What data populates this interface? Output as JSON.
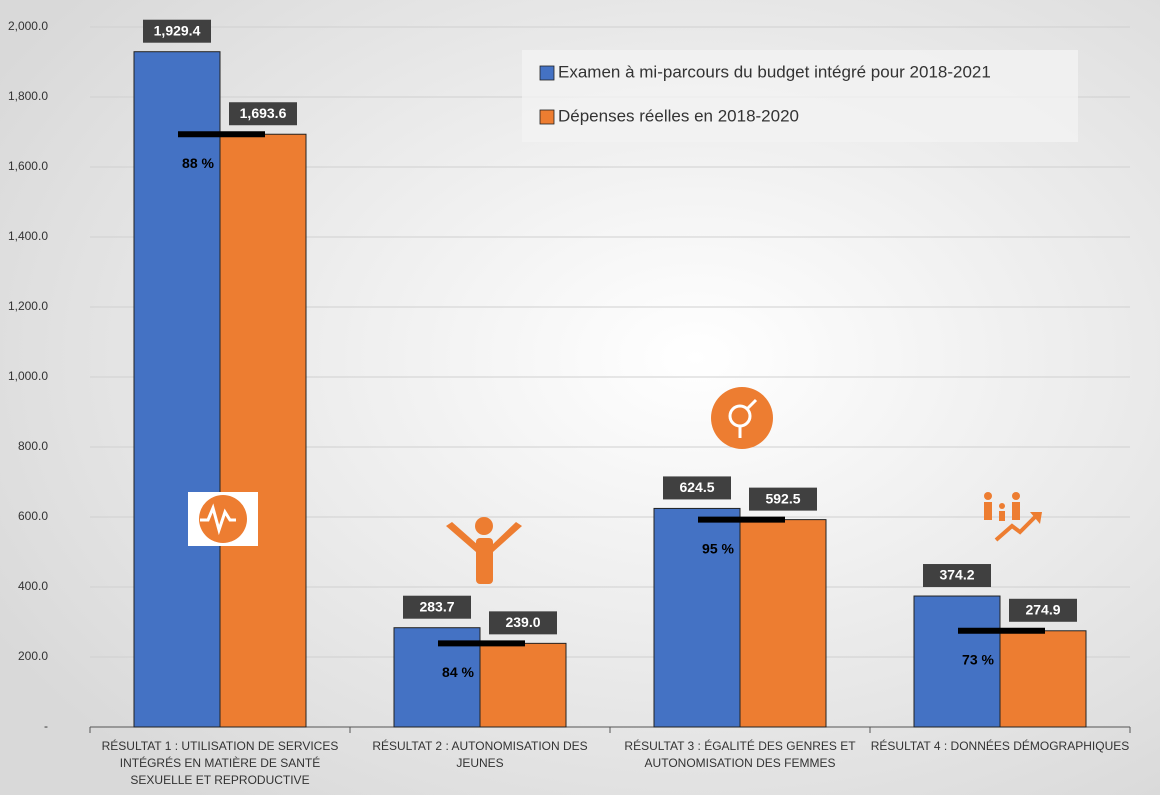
{
  "chart_data": {
    "type": "bar",
    "categories": [
      "RÉSULTAT 1 : UTILISATION DE SERVICES INTÉGRÉS EN MATIÈRE DE SANTÉ SEXUELLE ET REPRODUCTIVE",
      "RÉSULTAT 2 : AUTONOMISATION DES JEUNES",
      "RÉSULTAT 3 : ÉGALITÉ DES GENRES ET AUTONOMISATION DES FEMMES",
      "RÉSULTAT 4 : DONNÉES DÉMOGRAPHIQUES"
    ],
    "series": [
      {
        "name": "Examen à mi-parcours du budget intégré pour 2018-2021",
        "color": "#4472c4",
        "values": [
          1929.4,
          283.7,
          624.5,
          374.2
        ],
        "value_labels": [
          "1,929.4",
          "283.7",
          "624.5",
          "374.2"
        ]
      },
      {
        "name": "Dépenses réelles en 2018-2020",
        "color": "#ed7d31",
        "values": [
          1693.6,
          239.0,
          592.5,
          274.9
        ],
        "value_labels": [
          "1,693.6",
          "239.0",
          "592.5",
          "274.9"
        ]
      }
    ],
    "ratio_labels": [
      "88 %",
      "84 %",
      "95 %",
      "73 %"
    ],
    "ylim": [
      0,
      2000
    ],
    "yticks": [
      {
        "value": 0,
        "label": "-"
      },
      {
        "value": 200,
        "label": "200.0"
      },
      {
        "value": 400,
        "label": "400.0"
      },
      {
        "value": 600,
        "label": "600.0"
      },
      {
        "value": 800,
        "label": "800.0"
      },
      {
        "value": 1000,
        "label": "1,000.0"
      },
      {
        "value": 1200,
        "label": "1,200.0"
      },
      {
        "value": 1400,
        "label": "1,400.0"
      },
      {
        "value": 1600,
        "label": "1,600.0"
      },
      {
        "value": 1800,
        "label": "1,800.0"
      },
      {
        "value": 2000,
        "label": "2,000.0"
      }
    ],
    "grid": true,
    "legend": "top-right"
  }
}
